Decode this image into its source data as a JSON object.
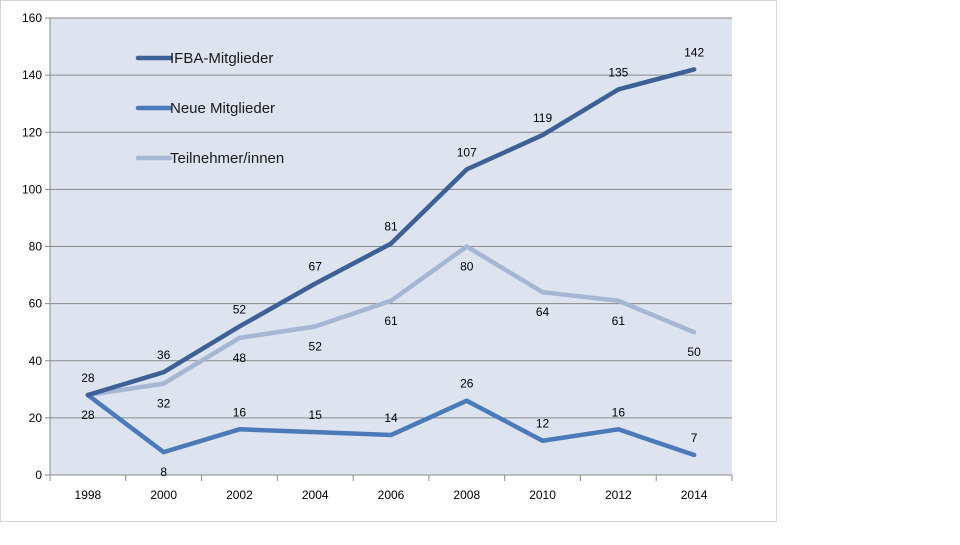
{
  "chart_data": {
    "type": "line",
    "title": "",
    "xlabel": "",
    "ylabel": "",
    "x": [
      "1998",
      "2000",
      "2002",
      "2004",
      "2006",
      "2008",
      "2010",
      "2012",
      "2014"
    ],
    "yticks": [
      "0",
      "20",
      "40",
      "60",
      "80",
      "100",
      "120",
      "140",
      "160"
    ],
    "ylim": [
      0,
      160
    ],
    "grid": true,
    "legend_position": "top-left",
    "plot_background": "#dde3ef",
    "series": [
      {
        "name": "IFBA-Mitglieder",
        "color": "#3d6097",
        "values": [
          28,
          36,
          52,
          67,
          81,
          107,
          119,
          135,
          142
        ],
        "labels": [
          "28",
          "36",
          "52",
          "67",
          "81",
          "107",
          "119",
          "135",
          "142"
        ]
      },
      {
        "name": "Neue Mitglieder",
        "color": "#4a7ab9",
        "values": [
          28,
          8,
          16,
          15,
          14,
          26,
          12,
          16,
          7
        ],
        "labels": [
          "28",
          "8",
          "16",
          "15",
          "14",
          "26",
          "12",
          "16",
          "7"
        ]
      },
      {
        "name": "Teilnehmer/innen",
        "color": "#a6b6d5",
        "values": [
          28,
          32,
          48,
          52,
          61,
          80,
          64,
          61,
          50
        ],
        "labels": [
          "28",
          "32",
          "48",
          "52",
          "61",
          "80",
          "64",
          "61",
          "50"
        ]
      }
    ]
  }
}
